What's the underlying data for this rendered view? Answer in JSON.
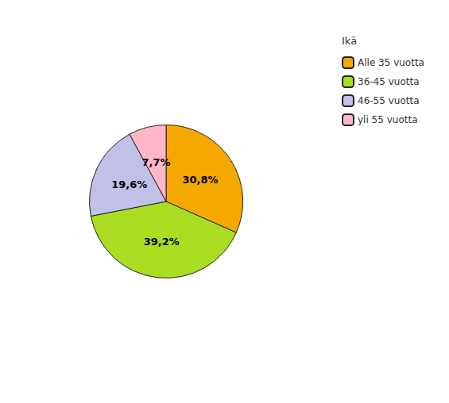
{
  "chart_data": {
    "type": "pie",
    "legend_title": "Ikä",
    "categories": [
      "Alle 35 vuotta",
      "36-45 vuotta",
      "46-55 vuotta",
      "yli 55 vuotta"
    ],
    "values": [
      30.8,
      39.2,
      19.6,
      7.7
    ],
    "value_labels": [
      "30,8%",
      "39,2%",
      "19,6%",
      "7,7%"
    ],
    "colors": [
      "#F5A800",
      "#AADD22",
      "#C0C0E8",
      "#FFB6C8"
    ],
    "data_labels": true,
    "legend": "right"
  }
}
